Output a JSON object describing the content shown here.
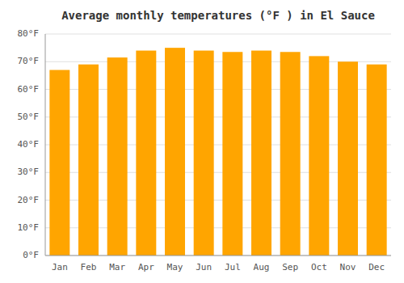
{
  "chart_data": {
    "type": "bar",
    "title": "Average monthly temperatures (°F ) in El Sauce",
    "categories": [
      "Jan",
      "Feb",
      "Mar",
      "Apr",
      "May",
      "Jun",
      "Jul",
      "Aug",
      "Sep",
      "Oct",
      "Nov",
      "Dec"
    ],
    "values": [
      67.0,
      69.0,
      71.5,
      74.0,
      75.0,
      74.0,
      73.5,
      74.0,
      73.5,
      72.0,
      70.0,
      69.0
    ],
    "color": "#FFA500",
    "ylim": [
      0,
      80
    ],
    "yticks": [
      {
        "value": 0,
        "label": "0°F"
      },
      {
        "value": 10,
        "label": "10°F"
      },
      {
        "value": 20,
        "label": "20°F"
      },
      {
        "value": 30,
        "label": "30°F"
      },
      {
        "value": 40,
        "label": "40°F"
      },
      {
        "value": 50,
        "label": "50°F"
      },
      {
        "value": 60,
        "label": "60°F"
      },
      {
        "value": 70,
        "label": "70°F"
      },
      {
        "value": 80,
        "label": "80°F"
      }
    ],
    "grid": true
  }
}
